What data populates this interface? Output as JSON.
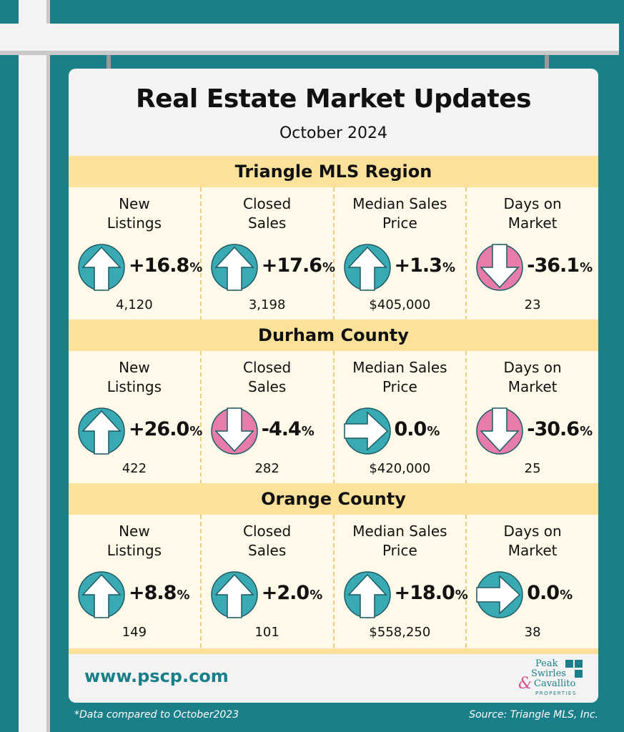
{
  "title": "Real Estate Market Updates",
  "subtitle": "October 2024",
  "colors": {
    "up": "#39aab3",
    "down": "#e77cab",
    "flat": "#39aab3",
    "band": "#fbe19a",
    "panel": "#fef9e8",
    "teal": "#1b7f8a"
  },
  "regions": [
    {
      "name": "Triangle MLS Region",
      "stats": [
        {
          "label_line1": "New",
          "label_line2": "Listings",
          "change": "+16.8",
          "pct": "%",
          "direction": "up",
          "icon": "arrow-up-icon",
          "value": "4,120"
        },
        {
          "label_line1": "Closed",
          "label_line2": "Sales",
          "change": "+17.6",
          "pct": "%",
          "direction": "up",
          "icon": "arrow-up-icon",
          "value": "3,198"
        },
        {
          "label_line1": "Median Sales",
          "label_line2": "Price",
          "change": "+1.3",
          "pct": "%",
          "direction": "up",
          "icon": "arrow-up-icon",
          "value": "$405,000"
        },
        {
          "label_line1": "Days on",
          "label_line2": "Market",
          "change": "-36.1",
          "pct": "%",
          "direction": "down",
          "icon": "arrow-down-icon",
          "value": "23"
        }
      ]
    },
    {
      "name": "Durham County",
      "stats": [
        {
          "label_line1": "New",
          "label_line2": "Listings",
          "change": "+26.0",
          "pct": "%",
          "direction": "up",
          "icon": "arrow-up-icon",
          "value": "422"
        },
        {
          "label_line1": "Closed",
          "label_line2": "Sales",
          "change": "-4.4",
          "pct": "%",
          "direction": "down",
          "icon": "arrow-down-icon",
          "value": "282"
        },
        {
          "label_line1": "Median Sales",
          "label_line2": "Price",
          "change": "0.0",
          "pct": "%",
          "direction": "flat",
          "icon": "arrow-right-icon",
          "value": "$420,000"
        },
        {
          "label_line1": "Days on",
          "label_line2": "Market",
          "change": "-30.6",
          "pct": "%",
          "direction": "down",
          "icon": "arrow-down-icon",
          "value": "25"
        }
      ]
    },
    {
      "name": "Orange County",
      "stats": [
        {
          "label_line1": "New",
          "label_line2": "Listings",
          "change": "+8.8",
          "pct": "%",
          "direction": "up",
          "icon": "arrow-up-icon",
          "value": "149"
        },
        {
          "label_line1": "Closed",
          "label_line2": "Sales",
          "change": "+2.0",
          "pct": "%",
          "direction": "up",
          "icon": "arrow-up-icon",
          "value": "101"
        },
        {
          "label_line1": "Median Sales",
          "label_line2": "Price",
          "change": "+18.0",
          "pct": "%",
          "direction": "up",
          "icon": "arrow-up-icon",
          "value": "$558,250"
        },
        {
          "label_line1": "Days on",
          "label_line2": "Market",
          "change": "0.0",
          "pct": "%",
          "direction": "flat",
          "icon": "arrow-right-icon",
          "value": "38"
        }
      ]
    }
  ],
  "website": "www.pscp.com",
  "logo": {
    "line1": "Peak",
    "line2": "Swirles",
    "amp": "&",
    "line3": "Cavallito",
    "line4": "PROPERTIES"
  },
  "footnote": "*Data compared to October2023",
  "source": "Source: Triangle MLS, Inc."
}
